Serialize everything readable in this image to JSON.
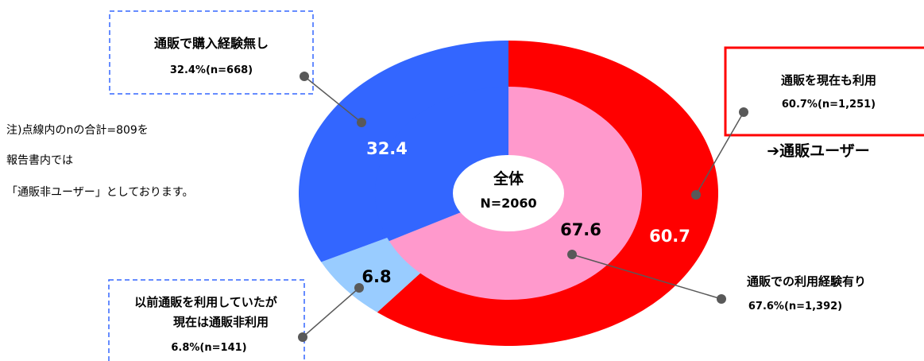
{
  "chart_data": {
    "type": "pie",
    "subtype": "double-doughnut",
    "center": {
      "line1": "全体",
      "line2": "N=2060"
    },
    "outer_ring": [
      {
        "name": "通販を現在も利用",
        "value": 60.7,
        "label": "60.7",
        "color": "#ff0000",
        "label_color": "#ffffff"
      },
      {
        "name": "以前通販を利用していたが現在は通販非利用",
        "value": 6.8,
        "label": "6.8",
        "color": "#99ccff",
        "label_color": "#000000"
      },
      {
        "name": "通販で購入経験無し",
        "value": 32.4,
        "label": "32.4",
        "color": "#3366ff",
        "label_color": "#ffffff"
      }
    ],
    "inner_ring": [
      {
        "name": "通販での利用経験有り",
        "value": 67.6,
        "label": "67.6",
        "color": "#ff99cc",
        "label_color": "#000000"
      },
      {
        "name": "通販で購入経験無し",
        "value": 32.4,
        "label": "",
        "color": "#3366ff",
        "label_color": "#ffffff"
      }
    ],
    "callouts": {
      "no_experience": {
        "line1": "通販で購入経験無し",
        "line2": "32.4%(n=668)"
      },
      "current_user": {
        "line1": "通販を現在も利用",
        "line2": "60.7%(n=1,251)"
      },
      "experience": {
        "line1": "通販での利用経験有り",
        "line2": "67.6%(n=1,392)"
      },
      "former_user": {
        "line1": "以前通販を利用していたが",
        "line2": "現在は通販非利用",
        "line3": "6.8%(n=141)"
      }
    },
    "arrow_label": "➔通販ユーザー",
    "note": [
      "注)点線内のnの合計=809を",
      "報告書内では",
      "「通販非ユーザー」としております。"
    ],
    "colors": {
      "dashed_box": "#3366ff",
      "solid_box": "#ff0000",
      "leader_line": "#595959"
    }
  }
}
